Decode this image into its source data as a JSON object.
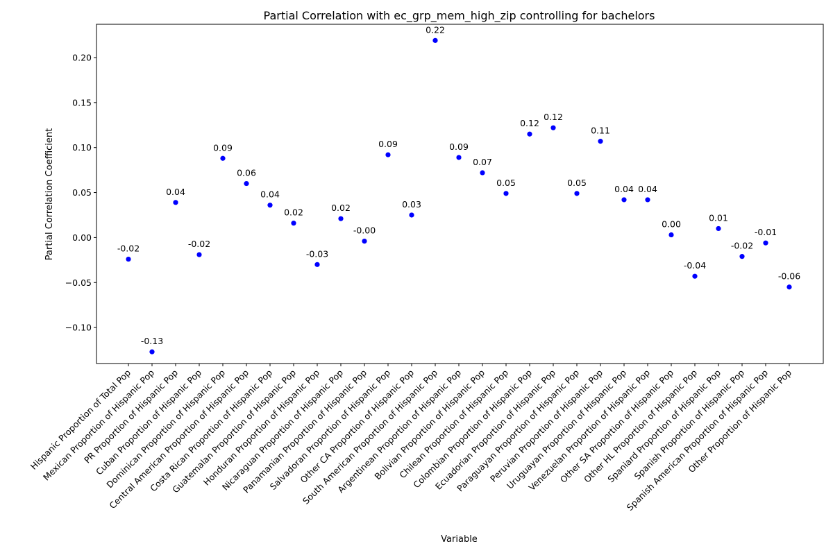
{
  "chart_data": {
    "type": "scatter",
    "title": "Partial Correlation with ec_grp_mem_high_zip controlling for bachelors",
    "xlabel": "Variable",
    "ylabel": "Partial Correlation Coefficient",
    "ylim": [
      -0.14,
      0.237
    ],
    "yticks": [
      -0.1,
      -0.05,
      0.0,
      0.05,
      0.1,
      0.15,
      0.2
    ],
    "ytick_labels": [
      "−0.10",
      "−0.05",
      "0.00",
      "0.05",
      "0.10",
      "0.15",
      "0.20"
    ],
    "grid": false,
    "marker_color": "#0000ff",
    "categories": [
      "Hispanic Proportion of Total Pop",
      "Mexican Proportion of Hispanic Pop",
      "PR Proportion of Hispanic Pop",
      "Cuban Proportion of Hispanic Pop",
      "Dominican Proportion of Hispanic Pop",
      "Central American Proportion of Hispanic Pop",
      "Costa Rican Proportion of Hispanic Pop",
      "Guatemalan Proportion of Hispanic Pop",
      "Honduran Proportion of Hispanic Pop",
      "Nicaraguan Proportion of Hispanic Pop",
      "Panamanian Proportion of Hispanic Pop",
      "Salvadoran Proportion of Hispanic Pop",
      "Other CA Proportion of Hispanic Pop",
      "South American Proportion of Hispanic Pop",
      "Argentinean Proportion of Hispanic Pop",
      "Bolivian Proportion of Hispanic Pop",
      "Chilean Proportion of Hispanic Pop",
      "Colombian Proportion of Hispanic Pop",
      "Ecuadorian Proportion of Hispanic Pop",
      "Paraguayan Proportion of Hispanic Pop",
      "Peruvian Proportion of Hispanic Pop",
      "Uruguayan Proportion of Hispanic Pop",
      "Venezuelan Proportion of Hispanic Pop",
      "Other SA Proportion of Hispanic Pop",
      "Other HL Proportion of Hispanic Pop",
      "Spaniard Proportion of Hispanic Pop",
      "Spanish Proportion of Hispanic Pop",
      "Spanish American Proportion of Hispanic Pop",
      "Other Proportion of Hispanic Pop"
    ],
    "values": [
      -0.024,
      -0.127,
      0.039,
      -0.019,
      0.088,
      0.06,
      0.036,
      0.016,
      -0.03,
      0.021,
      -0.004,
      0.092,
      0.025,
      0.219,
      0.089,
      0.072,
      0.049,
      0.115,
      0.122,
      0.049,
      0.107,
      0.042,
      0.042,
      0.003,
      -0.043,
      0.01,
      -0.021,
      -0.006,
      -0.055
    ],
    "data_labels": [
      "-0.02",
      "-0.13",
      "0.04",
      "-0.02",
      "0.09",
      "0.06",
      "0.04",
      "0.02",
      "-0.03",
      "0.02",
      "-0.00",
      "0.09",
      "0.03",
      "0.22",
      "0.09",
      "0.07",
      "0.05",
      "0.12",
      "0.12",
      "0.05",
      "0.11",
      "0.04",
      "0.04",
      "0.00",
      "-0.04",
      "0.01",
      "-0.02",
      "-0.01",
      "-0.06"
    ]
  }
}
